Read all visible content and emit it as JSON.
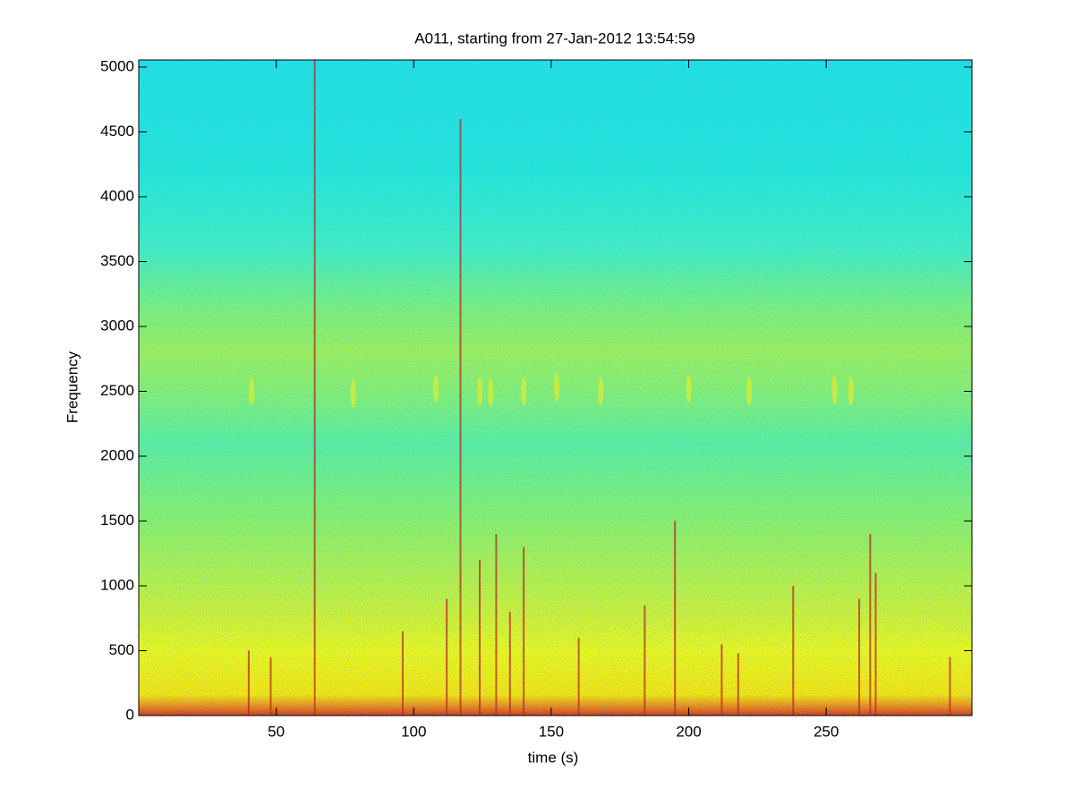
{
  "chart_data": {
    "type": "spectrogram",
    "title": "A011, starting from 27-Jan-2012 13:54:59",
    "xlabel": "time (s)",
    "ylabel": "Frequency",
    "xlim": [
      0,
      303
    ],
    "ylim": [
      0,
      5055
    ],
    "xticks": [
      50,
      100,
      150,
      200,
      250
    ],
    "yticks": [
      0,
      500,
      1000,
      1500,
      2000,
      2500,
      3000,
      3500,
      4000,
      4500,
      5000
    ],
    "color_stops": [
      {
        "frequency": 0,
        "color": "#d8300c"
      },
      {
        "frequency": 60,
        "color": "#f07a10"
      },
      {
        "frequency": 160,
        "color": "#ffe400"
      },
      {
        "frequency": 500,
        "color": "#f4f810"
      },
      {
        "frequency": 750,
        "color": "#d8f22a"
      },
      {
        "frequency": 1500,
        "color": "#8ef062"
      },
      {
        "frequency": 2100,
        "color": "#5cee9c"
      },
      {
        "frequency": 2450,
        "color": "#84f070"
      },
      {
        "frequency": 2800,
        "color": "#a2f052"
      },
      {
        "frequency": 3150,
        "color": "#7cf076"
      },
      {
        "frequency": 3600,
        "color": "#42eec0"
      },
      {
        "frequency": 4200,
        "color": "#24e6d8"
      },
      {
        "frequency": 5055,
        "color": "#20e0e2"
      }
    ],
    "streaks": {
      "time": [
        40,
        48,
        64,
        96,
        112,
        117,
        124,
        130,
        135,
        140,
        160,
        184,
        195,
        212,
        218,
        238,
        262,
        266,
        268,
        295
      ],
      "frequency": [
        500,
        450,
        5055,
        650,
        900,
        4600,
        1200,
        1400,
        800,
        1300,
        600,
        850,
        1500,
        550,
        480,
        1000,
        900,
        1400,
        1100,
        450
      ],
      "color": "#c81a08"
    },
    "tones": {
      "time": [
        41,
        78,
        108,
        124,
        128,
        140,
        152,
        168,
        200,
        222,
        253,
        259
      ],
      "frequency": [
        2500,
        2480,
        2520,
        2500,
        2490,
        2500,
        2530,
        2500,
        2520,
        2500,
        2510,
        2500
      ],
      "color": "#e8f020"
    }
  }
}
